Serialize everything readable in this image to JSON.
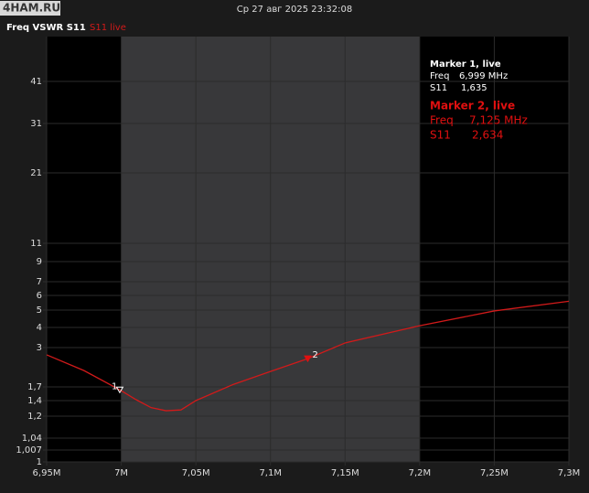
{
  "header": {
    "logo": "4HAM.RU",
    "datetime": "Ср 27 авг 2025 23:32:08",
    "chart_name": "Freq VSWR S11",
    "trace_name": "S11 live"
  },
  "chart_data": {
    "type": "line",
    "x": [
      6.95,
      6.975,
      6.999,
      7.01,
      7.02,
      7.03,
      7.04,
      7.05,
      7.075,
      7.1,
      7.125,
      7.15,
      7.2,
      7.25,
      7.3
    ],
    "series": [
      {
        "name": "S11 live",
        "color": "#d11a1a",
        "values": [
          2.76,
          2.24,
          1.635,
          1.42,
          1.31,
          1.27,
          1.28,
          1.4,
          1.78,
          2.21,
          2.634,
          3.23,
          4.1,
          4.95,
          5.6
        ]
      }
    ],
    "xlim": [
      6.95,
      7.3
    ],
    "xticks": [
      {
        "value": 6.95,
        "label": "6,95M"
      },
      {
        "value": 7,
        "label": "7M"
      },
      {
        "value": 7.05,
        "label": "7,05M"
      },
      {
        "value": 7.1,
        "label": "7,1M"
      },
      {
        "value": 7.15,
        "label": "7,15M"
      },
      {
        "value": 7.2,
        "label": "7,2M"
      },
      {
        "value": 7.25,
        "label": "7,25M"
      },
      {
        "value": 7.3,
        "label": "7,3M"
      }
    ],
    "band_xlim": [
      7,
      7.2
    ],
    "ylim": [
      1,
      52
    ],
    "yticks": [
      41,
      31,
      21,
      11,
      9,
      7,
      6,
      5,
      4,
      3,
      {
        "value": 1.7,
        "label": "1,7"
      },
      {
        "value": 1.4,
        "label": "1,4"
      },
      {
        "value": 1.2,
        "label": "1,2"
      },
      {
        "value": 1.04,
        "label": "1,04"
      },
      {
        "value": 1.007,
        "label": "1,007"
      },
      1
    ],
    "markers": [
      {
        "id": "1",
        "name": "Marker 1, live",
        "color": "#ffffff",
        "freq_label": "Freq",
        "freq": 6.999,
        "freq_text": "6,999 MHz",
        "s11_label": "S11",
        "s11": 1.635,
        "s11_text": "1,635"
      },
      {
        "id": "2",
        "name": "Marker 2, live",
        "color": "#e01010",
        "freq_label": "Freq",
        "freq": 7.125,
        "freq_text": "7,125 MHz",
        "s11_label": "S11",
        "s11": 2.634,
        "s11_text": "2,634"
      }
    ]
  }
}
